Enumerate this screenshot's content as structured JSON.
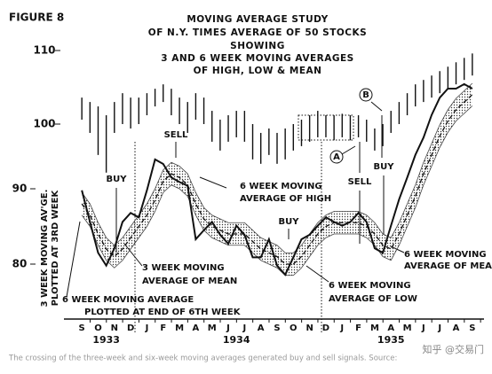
{
  "chart_data": {
    "type": "line",
    "title": "MOVING AVERAGE STUDY",
    "subtitle": [
      "OF N.Y. TIMES AVERAGE OF 50 STOCKS",
      "SHOWING",
      "3 AND 6 WEEK MOVING AVERAGES",
      "OF HIGH, LOW & MEAN"
    ],
    "figure": "FIGURE 8",
    "y_label": [
      "3 WEEK MOVING AV'GE.",
      "PLOTTED AT 3RD WEEK"
    ],
    "x": [
      0,
      0.5,
      1,
      1.5,
      2,
      2.5,
      3,
      3.5,
      4,
      4.5,
      5,
      5.5,
      6,
      6.5,
      7,
      7.5,
      8,
      8.5,
      9,
      9.5,
      10,
      10.5,
      11,
      11.5,
      12,
      12.5,
      13,
      13.5,
      14,
      14.5,
      15,
      15.5,
      16,
      16.5,
      17,
      17.5,
      18,
      18.5,
      19,
      19.5,
      20,
      20.5,
      21,
      21.5,
      22,
      22.5,
      23,
      23.5,
      24
    ],
    "xlim": [
      -0.5,
      24.5
    ],
    "xticks": [
      {
        "value": 0,
        "label": "S"
      },
      {
        "value": 1,
        "label": "O"
      },
      {
        "value": 2,
        "label": "N"
      },
      {
        "value": 3,
        "label": "D"
      },
      {
        "value": 4,
        "label": "J"
      },
      {
        "value": 5,
        "label": "F"
      },
      {
        "value": 6,
        "label": "M"
      },
      {
        "value": 7,
        "label": "A"
      },
      {
        "value": 8,
        "label": "M"
      },
      {
        "value": 9,
        "label": "J"
      },
      {
        "value": 10,
        "label": "J"
      },
      {
        "value": 11,
        "label": "A"
      },
      {
        "value": 12,
        "label": "S"
      },
      {
        "value": 13,
        "label": "O"
      },
      {
        "value": 14,
        "label": "N"
      },
      {
        "value": 15,
        "label": "D"
      },
      {
        "value": 16,
        "label": "J"
      },
      {
        "value": 17,
        "label": "F"
      },
      {
        "value": 18,
        "label": "M"
      },
      {
        "value": 19,
        "label": "A"
      },
      {
        "value": 20,
        "label": "M"
      },
      {
        "value": 21,
        "label": "J"
      },
      {
        "value": 22,
        "label": "J"
      },
      {
        "value": 23,
        "label": "A"
      },
      {
        "value": 24,
        "label": "S"
      }
    ],
    "years": [
      "1933",
      "1934",
      "1935"
    ],
    "ylim": [
      75,
      110
    ],
    "yticks": [
      80,
      90
    ],
    "y2lim": [
      90,
      112
    ],
    "y2ticks": [
      100,
      110
    ],
    "series": [
      {
        "axis": "y2",
        "color": "#111",
        "values": [
          103.6,
          103.0,
          102.4,
          101.2,
          103.0,
          104.2,
          103.6,
          103.6,
          104.2,
          104.8,
          105.4,
          104.8,
          103.6,
          103.0,
          104.2,
          103.6,
          101.8,
          100.6,
          101.2,
          101.8,
          101.8,
          100.0,
          98.8,
          99.4,
          98.8,
          99.4,
          100.0,
          100.6,
          101.2,
          101.8,
          101.2,
          101.2,
          101.4,
          101.2,
          101.2,
          100.6,
          99.4,
          100.0,
          101.8,
          103.0,
          104.2,
          105.4,
          106.0,
          106.6,
          107.2,
          107.8,
          108.4,
          109.0,
          109.6
        ]
      },
      {
        "axis": "y2",
        "color": "#111",
        "values": [
          100.6,
          98.8,
          95.8,
          93.4,
          98.8,
          100.0,
          99.4,
          100.0,
          101.2,
          102.4,
          103.0,
          101.2,
          100.0,
          98.8,
          100.6,
          100.0,
          97.6,
          96.4,
          97.6,
          98.2,
          97.6,
          95.2,
          94.6,
          95.8,
          94.6,
          95.2,
          96.4,
          97.0,
          97.6,
          98.2,
          98.2,
          97.8,
          98.2,
          97.8,
          98.2,
          97.6,
          96.4,
          97.0,
          98.8,
          100.0,
          101.2,
          102.4,
          103.0,
          103.6,
          104.2,
          104.8,
          105.4,
          106.0,
          106.6
        ]
      },
      {
        "color": "#111",
        "values": [
          89.8,
          85.6,
          81.5,
          79.8,
          82.1,
          85.6,
          86.8,
          86.2,
          89.8,
          93.9,
          93.3,
          91.5,
          90.9,
          90.4,
          83.3,
          84.5,
          85.6,
          83.9,
          82.7,
          85.1,
          83.9,
          80.9,
          80.9,
          83.3,
          79.8,
          78.6,
          80.9,
          83.3,
          83.9,
          85.1,
          86.2,
          85.6,
          85.1,
          85.6,
          86.8,
          85.6,
          82.1,
          81.5,
          85.1,
          88.6,
          91.5,
          94.5,
          96.8,
          99.8,
          102.1,
          103.3,
          103.3,
          103.9,
          103.3
        ]
      },
      {
        "color": "#444",
        "values": [
          89.5,
          88,
          85.5,
          83.5,
          82.5,
          83.5,
          85,
          86.5,
          88,
          90,
          92.5,
          93.5,
          93,
          92,
          89.5,
          87.5,
          86.5,
          86,
          85.5,
          85.5,
          85.5,
          84.5,
          83.5,
          83,
          82.5,
          81.5,
          81.5,
          82.5,
          84,
          85.5,
          86.5,
          87,
          87,
          87,
          87,
          86.5,
          85.5,
          84,
          83.5,
          85.5,
          88,
          90.5,
          93.5,
          96,
          98.5,
          100.5,
          102,
          103,
          104
        ]
      },
      {
        "color": "#444",
        "values": [
          86.5,
          85,
          82.5,
          80.5,
          79.5,
          80.5,
          82,
          83.5,
          85,
          87,
          89.5,
          90.5,
          90,
          89,
          86.5,
          84.5,
          83.5,
          83,
          82.5,
          82.5,
          82.5,
          81.5,
          80.5,
          80,
          79.5,
          78.5,
          78.5,
          79.5,
          81,
          82.5,
          83.5,
          84,
          84,
          84,
          84,
          83.5,
          82.5,
          81,
          80.5,
          82.5,
          85,
          87.5,
          90.5,
          93,
          95.5,
          97.5,
          99,
          100,
          101
        ]
      },
      {
        "color": "#111",
        "dashed": true,
        "values": [
          88,
          86.5,
          84,
          82,
          81,
          82,
          83.5,
          85,
          86.5,
          88.5,
          91,
          92,
          91.5,
          90.5,
          88,
          86,
          85,
          84.5,
          84,
          84,
          84,
          83,
          82,
          81.5,
          81,
          80,
          80,
          81,
          82.5,
          84,
          85,
          85.5,
          85.5,
          85.5,
          85.5,
          85,
          84,
          82.5,
          82,
          84,
          86.5,
          89,
          92,
          94.5,
          97,
          99,
          100.5,
          101.5,
          102.5
        ]
      }
    ],
    "annotations": [
      "SELL",
      "BUY",
      "6 WEEK MOVING",
      "AVERAGE OF HIGH",
      "BUY",
      "SELL",
      "BUY",
      "A",
      "B",
      "3 WEEK MOVING",
      "AVERAGE OF MEAN",
      "6 WEEK MOVING AVERAGE",
      "PLOTTED AT END OF 6TH WEEK",
      "6 WEEK MOVING",
      "AVERAGE OF LOW",
      "6 WEEK MOVING",
      "AVERAGE OF MEAN"
    ],
    "caption": "The crossing of the three-week and six-week moving averages generated buy and sell signals. Source:",
    "watermark": "知乎 @交易门"
  }
}
